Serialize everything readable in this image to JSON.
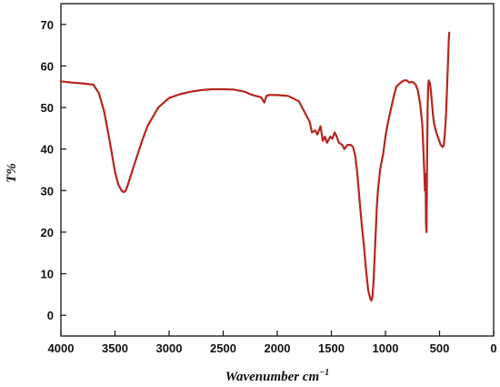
{
  "chart_data": {
    "type": "line",
    "xlabel": "Wavenumber cm",
    "xlabel_sup": "−1",
    "ylabel": "T%",
    "xlim": [
      4000,
      0
    ],
    "ylim": [
      -5,
      75
    ],
    "x_ticks": [
      4000,
      3500,
      3000,
      2500,
      2000,
      1500,
      1000,
      500,
      0
    ],
    "y_ticks": [
      0,
      10,
      20,
      30,
      40,
      50,
      60,
      70
    ],
    "grid": false,
    "line_color": "#b5261e",
    "series": [
      {
        "x": [
          4000,
          3900,
          3800,
          3700,
          3650,
          3600,
          3550,
          3500,
          3470,
          3440,
          3420,
          3400,
          3380,
          3350,
          3300,
          3250,
          3200,
          3100,
          3000,
          2900,
          2800,
          2700,
          2600,
          2500,
          2400,
          2300,
          2250,
          2200,
          2150,
          2120,
          2100,
          2080,
          2000,
          1900,
          1800,
          1750,
          1700,
          1680,
          1650,
          1630,
          1600,
          1580,
          1560,
          1540,
          1510,
          1490,
          1470,
          1450,
          1430,
          1400,
          1380,
          1350,
          1320,
          1300,
          1280,
          1260,
          1240,
          1220,
          1200,
          1180,
          1160,
          1140,
          1130,
          1120,
          1110,
          1100,
          1090,
          1080,
          1070,
          1050,
          1020,
          1000,
          980,
          950,
          920,
          900,
          880,
          860,
          830,
          800,
          780,
          760,
          740,
          720,
          700,
          680,
          660,
          650,
          640,
          635,
          632,
          628,
          625,
          620,
          615,
          610,
          605,
          600,
          590,
          580,
          570,
          560,
          550,
          530,
          510,
          490,
          470,
          460,
          450,
          440,
          430,
          420,
          415,
          412,
          410
        ],
        "y": [
          56.3,
          56,
          55.8,
          55.5,
          53.5,
          49,
          42,
          34.5,
          31.5,
          30,
          29.6,
          30,
          31.5,
          34,
          38,
          42,
          45.5,
          50,
          52.3,
          53.2,
          53.8,
          54.2,
          54.4,
          54.4,
          54.3,
          53.8,
          53.2,
          52.8,
          52.5,
          51.2,
          52.8,
          53,
          53,
          52.8,
          51.5,
          49,
          46.5,
          44,
          44.5,
          43.5,
          45.5,
          42,
          43,
          41.5,
          43,
          42.5,
          44,
          43,
          41.5,
          41,
          40,
          41,
          41,
          40.5,
          38.5,
          34,
          28,
          22,
          17,
          11,
          6,
          4,
          3.5,
          4.5,
          8,
          14,
          20,
          26,
          30,
          35,
          39,
          43,
          46,
          49.5,
          53,
          55,
          55.5,
          56,
          56.5,
          56.5,
          56,
          56.2,
          56,
          55.5,
          54,
          51,
          46,
          40,
          34,
          30,
          34,
          30,
          22,
          20,
          38,
          50,
          55,
          56.5,
          56,
          54,
          51,
          48,
          46,
          44,
          42.5,
          41,
          40.5,
          41,
          44,
          48,
          55,
          62,
          66,
          67.5,
          68
        ]
      }
    ]
  }
}
